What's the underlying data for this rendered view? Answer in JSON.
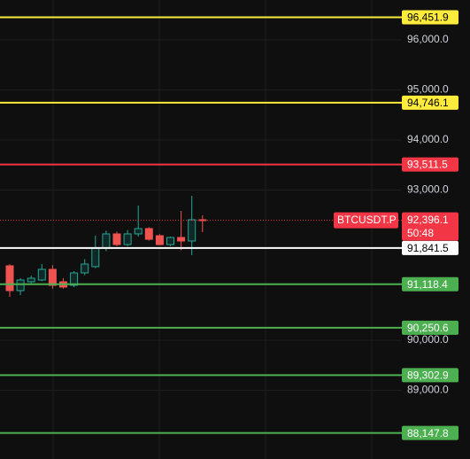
{
  "chart_data": {
    "type": "candlestick",
    "symbol": "BTCUSDT.P",
    "countdown": "50:48",
    "last_price": {
      "value": 92396.1,
      "label": "92,396.1",
      "color": "#f23645"
    },
    "ylim": [
      87628,
      96796
    ],
    "yticks": [
      {
        "value": 96000,
        "label": "96,000.0"
      },
      {
        "value": 95000,
        "label": "95,000.0"
      },
      {
        "value": 94000,
        "label": "94,000.0"
      },
      {
        "value": 93000,
        "label": "93,000.0"
      },
      {
        "value": 90000,
        "label": "90,000.0"
      },
      {
        "value": 89000,
        "label": "89,000.0"
      }
    ],
    "up_color": "#26a69a",
    "down_color": "#ef5350",
    "open": [
      91487,
      90991,
      91168,
      91203,
      91416,
      91168,
      91097,
      91345,
      91470,
      91840,
      92124,
      91911,
      92124,
      92230,
      92088,
      91911,
      92053,
      91982,
      92407
    ],
    "high": [
      91520,
      91240,
      91290,
      91520,
      91500,
      91240,
      91380,
      91620,
      92090,
      92190,
      92170,
      92200,
      92690,
      92260,
      92120,
      92070,
      92584,
      92885,
      92495
    ],
    "low": [
      90867,
      90900,
      91130,
      91180,
      91030,
      91030,
      91060,
      91300,
      91440,
      91780,
      91880,
      91880,
      92070,
      91990,
      91900,
      91880,
      91800,
      91700,
      92159
    ],
    "close": [
      90991,
      91203,
      91239,
      91416,
      91097,
      91062,
      91345,
      91522,
      91840,
      92124,
      91911,
      92124,
      92230,
      92017,
      91911,
      92053,
      91982,
      92407,
      92396
    ],
    "levels": [
      {
        "value": 96451.9,
        "label": "96,451.9",
        "color": "#ffeb3b"
      },
      {
        "value": 94746.1,
        "label": "94,746.1",
        "color": "#ffeb3b"
      },
      {
        "value": 93511.5,
        "label": "93,511.5",
        "color": "#f23645"
      },
      {
        "value": 91841.5,
        "label": "91,841.5",
        "color": "#ffffff"
      },
      {
        "value": 91118.4,
        "label": "91,118.4",
        "color": "#4caf50"
      },
      {
        "value": 90250.6,
        "label": "90,250.6",
        "color": "#4caf50"
      },
      {
        "value": 89302.9,
        "label": "89,302.9",
        "color": "#4caf50"
      },
      {
        "value": 88147.8,
        "label": "88,147.8",
        "color": "#4caf50"
      }
    ]
  }
}
